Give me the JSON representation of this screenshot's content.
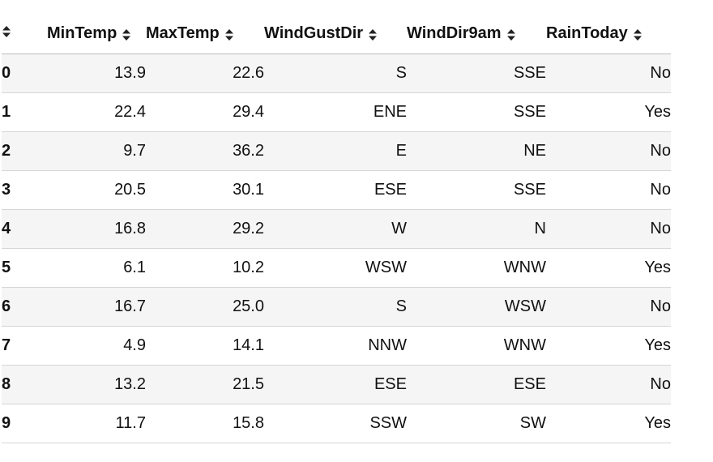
{
  "table": {
    "columns": [
      "",
      "MinTemp",
      "MaxTemp",
      "WindGustDir",
      "WindDir9am",
      "RainToday"
    ],
    "rows": [
      {
        "index": "0",
        "MinTemp": "13.9",
        "MaxTemp": "22.6",
        "WindGustDir": "S",
        "WindDir9am": "SSE",
        "RainToday": "No"
      },
      {
        "index": "1",
        "MinTemp": "22.4",
        "MaxTemp": "29.4",
        "WindGustDir": "ENE",
        "WindDir9am": "SSE",
        "RainToday": "Yes"
      },
      {
        "index": "2",
        "MinTemp": "9.7",
        "MaxTemp": "36.2",
        "WindGustDir": "E",
        "WindDir9am": "NE",
        "RainToday": "No"
      },
      {
        "index": "3",
        "MinTemp": "20.5",
        "MaxTemp": "30.1",
        "WindGustDir": "ESE",
        "WindDir9am": "SSE",
        "RainToday": "No"
      },
      {
        "index": "4",
        "MinTemp": "16.8",
        "MaxTemp": "29.2",
        "WindGustDir": "W",
        "WindDir9am": "N",
        "RainToday": "No"
      },
      {
        "index": "5",
        "MinTemp": "6.1",
        "MaxTemp": "10.2",
        "WindGustDir": "WSW",
        "WindDir9am": "WNW",
        "RainToday": "Yes"
      },
      {
        "index": "6",
        "MinTemp": "16.7",
        "MaxTemp": "25.0",
        "WindGustDir": "S",
        "WindDir9am": "WSW",
        "RainToday": "No"
      },
      {
        "index": "7",
        "MinTemp": "4.9",
        "MaxTemp": "14.1",
        "WindGustDir": "NNW",
        "WindDir9am": "WNW",
        "RainToday": "Yes"
      },
      {
        "index": "8",
        "MinTemp": "13.2",
        "MaxTemp": "21.5",
        "WindGustDir": "ESE",
        "WindDir9am": "ESE",
        "RainToday": "No"
      },
      {
        "index": "9",
        "MinTemp": "11.7",
        "MaxTemp": "15.8",
        "WindGustDir": "SSW",
        "WindDir9am": "SW",
        "RainToday": "Yes"
      }
    ]
  },
  "icons": {
    "sort": "sort-icon"
  },
  "colors": {
    "stripe": "#f5f5f5",
    "text": "#111111",
    "border": "#d6d6d6"
  }
}
